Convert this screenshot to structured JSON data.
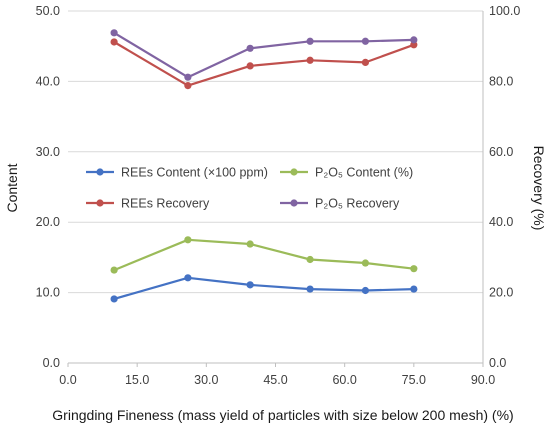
{
  "chart_data": {
    "type": "line",
    "xlabel": "Gringding Fineness (mass yield of particles with size below 200 mesh) (%)",
    "ylabel_left": "Content",
    "ylabel_right": "Recovery (%)",
    "xlim": [
      0,
      90
    ],
    "xticks": [
      "0.0",
      "15.0",
      "30.0",
      "45.0",
      "60.0",
      "75.0",
      "90.0"
    ],
    "ylim_left": [
      0,
      50
    ],
    "yticks_left": [
      "0.0",
      "10.0",
      "20.0",
      "30.0",
      "40.0",
      "50.0"
    ],
    "ylim_right": [
      0,
      100
    ],
    "yticks_right": [
      "0.0",
      "20.0",
      "40.0",
      "60.0",
      "80.0",
      "100.0"
    ],
    "grid": "horizontal",
    "legend_position": "center-left",
    "series": [
      {
        "name": "REEs Content (×100 ppm)",
        "axis": "left",
        "color": "#4472c4",
        "x": [
          10.0,
          26.0,
          39.5,
          52.5,
          64.5,
          75.0
        ],
        "y": [
          9.1,
          12.1,
          11.1,
          10.5,
          10.3,
          10.5
        ]
      },
      {
        "name": "P₂O₅ Content (%)",
        "axis": "left",
        "color": "#9bbb59",
        "x": [
          10.0,
          26.0,
          39.5,
          52.5,
          64.5,
          75.0
        ],
        "y": [
          13.2,
          17.5,
          16.9,
          14.7,
          14.2,
          13.4
        ]
      },
      {
        "name": "REEs Recovery",
        "axis": "right",
        "color": "#c0504d",
        "x": [
          10.0,
          26.0,
          39.5,
          52.5,
          64.5,
          75.0
        ],
        "y": [
          91.2,
          78.8,
          84.4,
          86.0,
          85.4,
          90.4
        ]
      },
      {
        "name": "P₂O₅ Recovery",
        "axis": "right",
        "color": "#8064a2",
        "x": [
          10.0,
          26.0,
          39.5,
          52.5,
          64.5,
          75.0
        ],
        "y": [
          93.8,
          81.2,
          89.4,
          91.4,
          91.4,
          91.8
        ]
      }
    ]
  }
}
